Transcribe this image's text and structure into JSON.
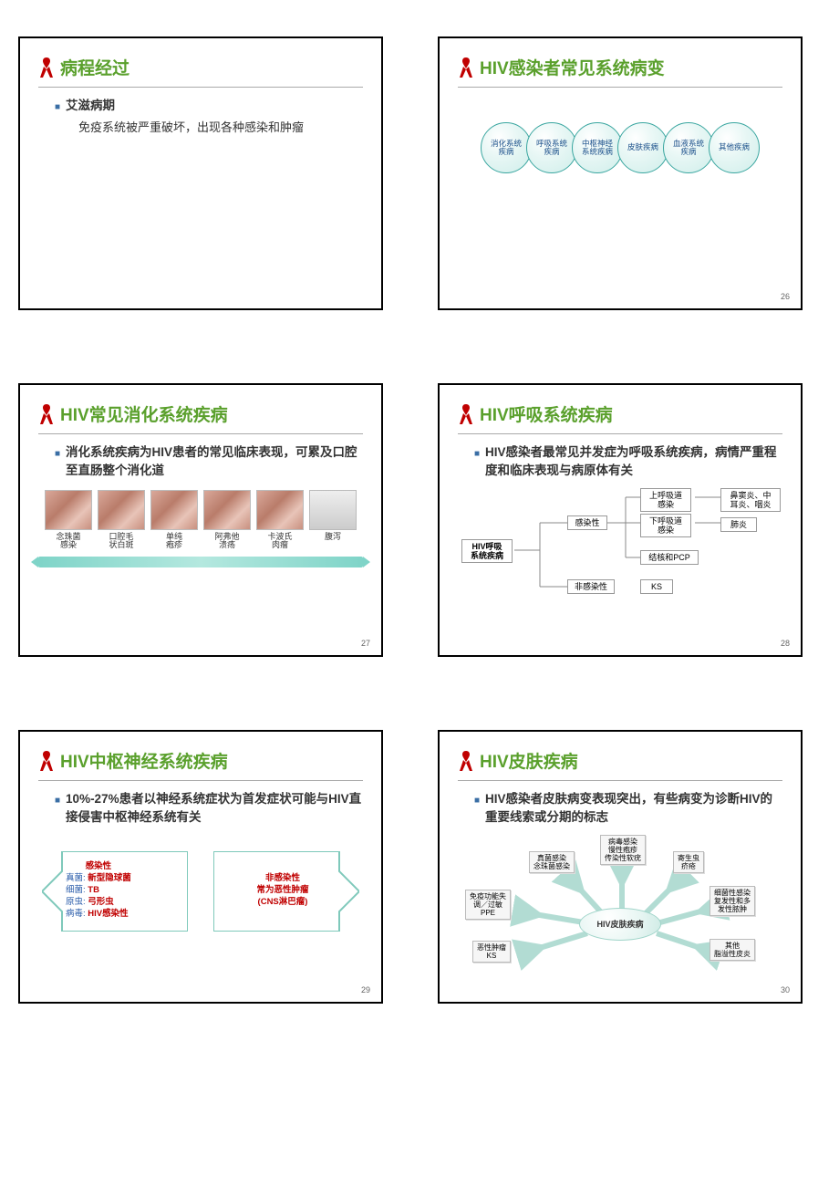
{
  "colors": {
    "title": "#5aa02c",
    "bullet_square": "#3a6ea5",
    "red": "#c00000",
    "blue": "#2a5caa",
    "circle_border": "#3aa6a0",
    "teal_light": "#bfe0d8"
  },
  "slides": [
    {
      "num": "",
      "title": "病程经过",
      "bullet": "艾滋病期",
      "sub": "免疫系统被严重破坏，出现各种感染和肿瘤"
    },
    {
      "num": "26",
      "title": "HIV感染者常见系统病变",
      "circles": [
        "消化系统\n疾病",
        "呼吸系统\n疾病",
        "中枢神经\n系统疾病",
        "皮肤疾病",
        "血液系统\n疾病",
        "其他疾病"
      ]
    },
    {
      "num": "27",
      "title": "HIV常见消化系统疾病",
      "bullet": "消化系统疾病为HIV患者的常见临床表现，可累及口腔至直肠整个消化道",
      "thumbs": [
        "念珠菌\n感染",
        "口腔毛\n状白斑",
        "单纯\n疱疹",
        "阿弗他\n溃疡",
        "卡波氏\n肉瘤",
        "腹泻"
      ]
    },
    {
      "num": "28",
      "title": "HIV呼吸系统疾病",
      "bullet": "HIV感染者最常见并发症为呼吸系统疾病，病情严重程度和临床表现与病原体有关",
      "root": "HIV呼吸\n系统疾病",
      "branch1": "感染性",
      "branch2": "非感染性",
      "leaves": {
        "upper": "上呼吸道\n感染",
        "upper_r": "鼻窦炎、中\n耳炎、咽炎",
        "lower": "下呼吸道\n感染",
        "lower_r": "肺炎",
        "tb": "结核和PCP",
        "ks": "KS"
      }
    },
    {
      "num": "29",
      "title": "HIV中枢神经系统疾病",
      "bullet": "10%-27%患者以神经系统症状为首发症状可能与HIV直接侵害中枢神经系统有关",
      "left": {
        "head": "感染性",
        "lines": [
          [
            "真菌:",
            "新型隐球菌"
          ],
          [
            "细菌:",
            "TB"
          ],
          [
            "原虫:",
            "弓形虫"
          ],
          [
            "病毒:",
            "HIV感染性"
          ]
        ]
      },
      "right": {
        "head": "非感染性",
        "line1": "常为恶性肿瘤",
        "line2": "(CNS淋巴瘤)"
      }
    },
    {
      "num": "30",
      "title": "HIV皮肤疾病",
      "bullet": "HIV感染者皮肤病变表现突出，有些病变为诊断HIV的重要线索或分期的标志",
      "center": "HIV皮肤疾病",
      "nodes": {
        "n1": "真菌感染\n念珠菌感染",
        "n2": "病毒感染\n慢性疱疹\n传染性软疣",
        "n3": "寄生虫\n疥疮",
        "n4": "细菌性感染\n复发性和多\n发性脓肿",
        "n5": "其他\n脂溢性皮炎",
        "n6": "恶性肿瘤\nKS",
        "n7": "免疫功能失\n调／过敏\nPPE"
      }
    }
  ]
}
